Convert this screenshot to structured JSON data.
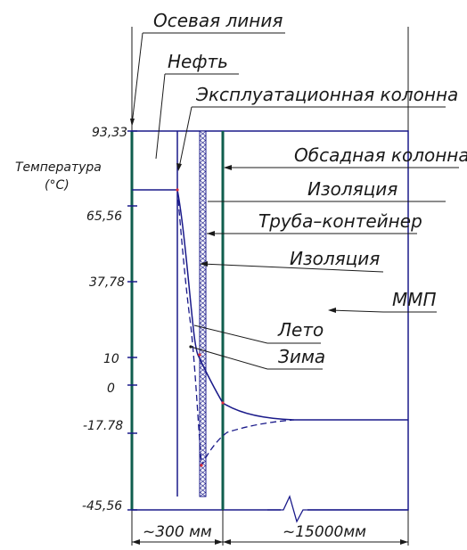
{
  "labels": {
    "axis_line": "Осевая линия",
    "oil": "Нефть",
    "production_string": "Эксплуатационная колонна",
    "casing": "Обсадная колонна",
    "insulation_top": "Изоляция",
    "container_pipe": "Труба–контейнер",
    "insulation_mid": "Изоляция",
    "permafrost": "ММП",
    "summer": "Лето",
    "winter": "Зима",
    "y_title_line1": "Температура",
    "y_title_line2": "(°С)"
  },
  "y_ticks": [
    "93,33",
    "65,56",
    "37,78",
    "10",
    "0",
    "-17.78",
    "-45,56"
  ],
  "dimensions": {
    "left": "~300 мм",
    "right": "~15000мм"
  },
  "colors": {
    "line": "#1a1a1a",
    "frame": "#1a1a8a",
    "wall": "#0f5e4e",
    "summer_curve": "#1a1a8a",
    "winter_curve": "#1a1a8a",
    "marker": "#e0303a"
  }
}
